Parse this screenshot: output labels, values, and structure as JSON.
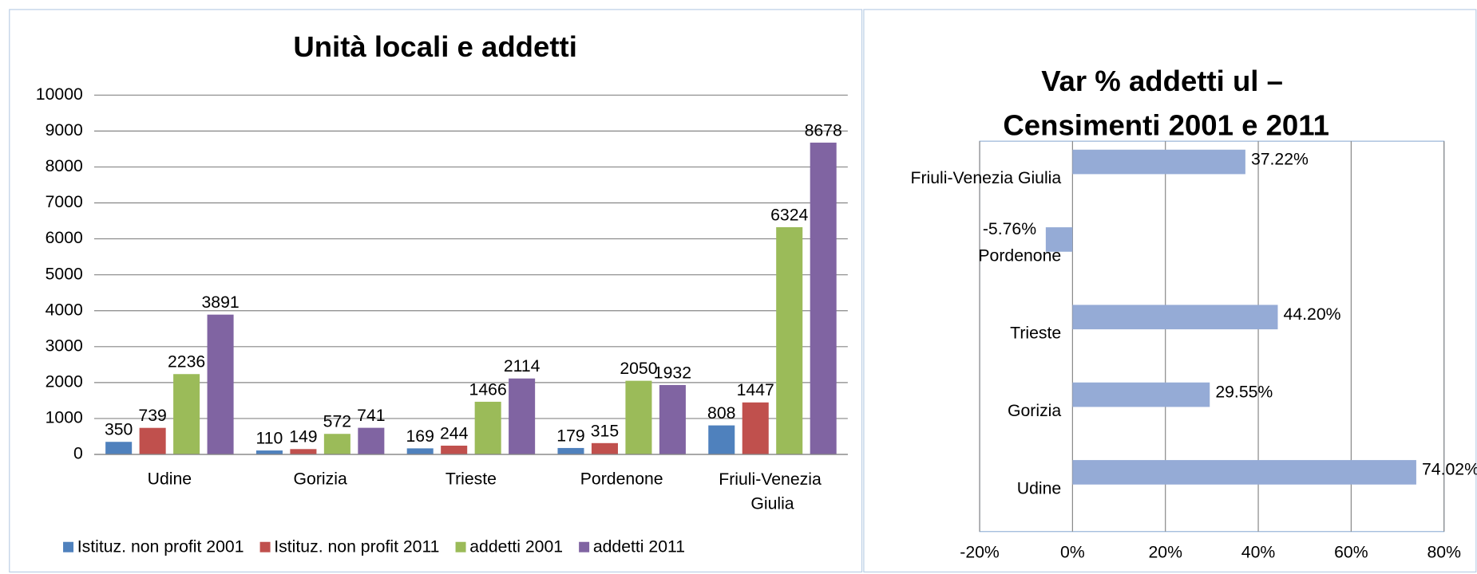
{
  "chart_data": [
    {
      "type": "bar",
      "title": "Unità locali e addetti",
      "categories": [
        "Udine",
        "Gorizia",
        "Trieste",
        "Pordenone",
        "Friuli-Venezia Giulia"
      ],
      "series": [
        {
          "name": "Istituz. non profit 2001",
          "color": "#4f81bd",
          "values": [
            350,
            110,
            169,
            179,
            808
          ]
        },
        {
          "name": "Istituz. non profit 2011",
          "color": "#c0504d",
          "values": [
            739,
            149,
            244,
            315,
            1447
          ]
        },
        {
          "name": "addetti 2001",
          "color": "#9bbb59",
          "values": [
            2236,
            572,
            1466,
            2050,
            6324
          ]
        },
        {
          "name": "addetti 2011",
          "color": "#8064a2",
          "values": [
            3891,
            741,
            2114,
            1932,
            8678
          ]
        }
      ],
      "ylim": [
        0,
        10000
      ],
      "yticks": [
        0,
        1000,
        2000,
        3000,
        4000,
        5000,
        6000,
        7000,
        8000,
        9000,
        10000
      ],
      "grid": true,
      "legend": "bottom"
    },
    {
      "type": "hbar",
      "title": "Var % addetti ul – Censimenti 2001 e 2011",
      "categories": [
        "Udine",
        "Gorizia",
        "Trieste",
        "Pordenone",
        "Friuli-Venezia Giulia"
      ],
      "values": [
        74.02,
        29.55,
        44.2,
        -5.76,
        37.22
      ],
      "value_labels": [
        "74.02%",
        "29.55%",
        "44.20%",
        "-5.76%",
        "37.22%"
      ],
      "color": "#95abd6",
      "xlim": [
        -20,
        80
      ],
      "xticks": [
        {
          "value": -20,
          "label": "-20%"
        },
        {
          "value": 0,
          "label": "0%"
        },
        {
          "value": 20,
          "label": "20%"
        },
        {
          "value": 40,
          "label": "40%"
        },
        {
          "value": 60,
          "label": "60%"
        },
        {
          "value": 80,
          "label": "80%"
        }
      ],
      "grid": true
    }
  ]
}
